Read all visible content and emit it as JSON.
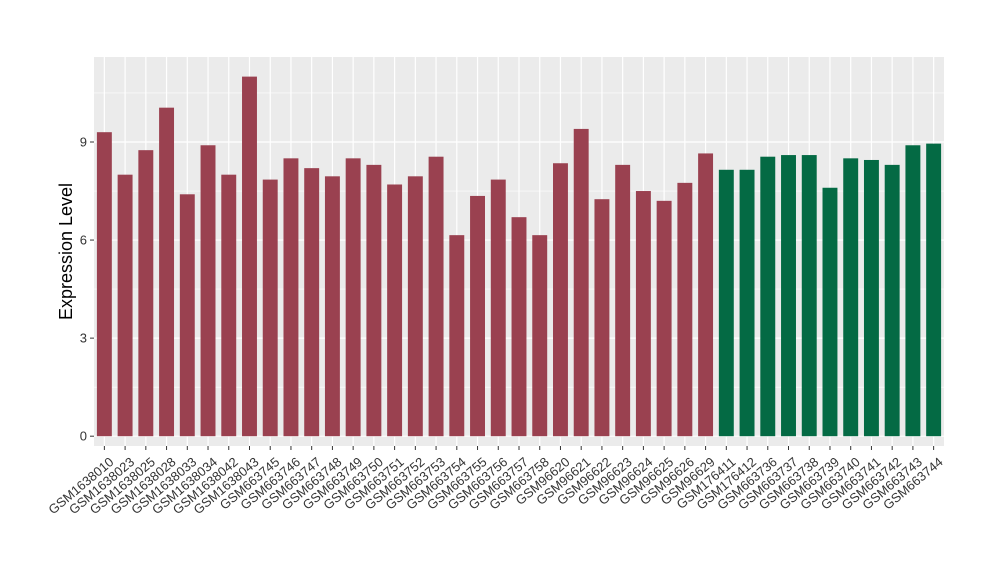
{
  "chart_data": {
    "type": "bar",
    "ylabel": "Expression Level",
    "xlabel": "",
    "ylim": [
      -0.3,
      11.6
    ],
    "yticks": [
      0,
      3,
      6,
      9
    ],
    "grid": true,
    "background": "#EBEBEB",
    "grid_color": "#FFFFFF",
    "categories": [
      "GSM1638010",
      "GSM1638023",
      "GSM1638025",
      "GSM1638028",
      "GSM1638033",
      "GSM1638034",
      "GSM1638042",
      "GSM1638043",
      "GSM663745",
      "GSM663746",
      "GSM663747",
      "GSM663748",
      "GSM663749",
      "GSM663750",
      "GSM663751",
      "GSM663752",
      "GSM663753",
      "GSM663754",
      "GSM663755",
      "GSM663756",
      "GSM663757",
      "GSM663758",
      "GSM96620",
      "GSM96621",
      "GSM96622",
      "GSM96623",
      "GSM96624",
      "GSM96625",
      "GSM96626",
      "GSM96629",
      "GSM176411",
      "GSM176412",
      "GSM663736",
      "GSM663737",
      "GSM663738",
      "GSM663739",
      "GSM663740",
      "GSM663741",
      "GSM663742",
      "GSM663743",
      "GSM663744"
    ],
    "values": [
      9.3,
      8.0,
      8.75,
      10.05,
      7.4,
      8.9,
      8.0,
      11.0,
      7.85,
      8.5,
      8.2,
      7.95,
      8.5,
      8.3,
      7.7,
      7.95,
      8.55,
      6.15,
      7.35,
      7.85,
      6.7,
      6.15,
      8.35,
      9.4,
      7.25,
      8.3,
      7.5,
      7.2,
      7.75,
      8.65,
      8.15,
      8.15,
      8.55,
      8.6,
      8.6,
      7.6,
      8.5,
      8.45,
      8.3,
      8.9,
      8.95
    ],
    "groups": [
      "a",
      "a",
      "a",
      "a",
      "a",
      "a",
      "a",
      "a",
      "a",
      "a",
      "a",
      "a",
      "a",
      "a",
      "a",
      "a",
      "a",
      "a",
      "a",
      "a",
      "a",
      "a",
      "a",
      "a",
      "a",
      "a",
      "a",
      "a",
      "a",
      "a",
      "b",
      "b",
      "b",
      "b",
      "b",
      "b",
      "b",
      "b",
      "b",
      "b",
      "b"
    ],
    "colors": {
      "a": "#9A4150",
      "b": "#046A44"
    }
  }
}
